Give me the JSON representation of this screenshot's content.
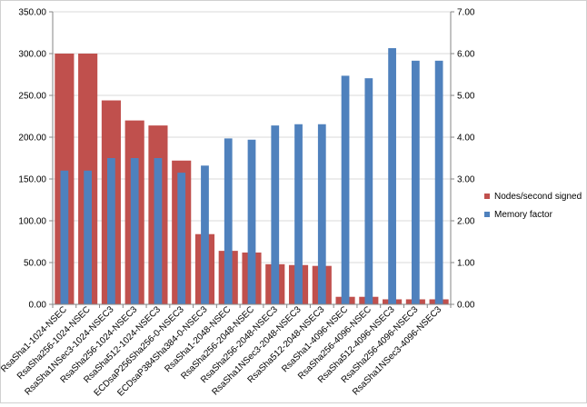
{
  "chart_data": {
    "type": "bar",
    "categories": [
      "RsaSha1-1024-NSEC",
      "RsaSha256-1024-NSEC",
      "RsaSha1NSec3-1024-NSEC3",
      "RsaSha256-1024-NSEC3",
      "RsaSha512-1024-NSEC3",
      "ECDsaP256Sha256-0-NSEC3",
      "ECDsaP384Sha384-0-NSEC3",
      "RsaSha1-2048-NSEC",
      "RsaSha256-2048-NSEC",
      "RsaSha256-2048-NSEC3",
      "RsaSha1NSec3-2048-NSEC3",
      "RsaSha512-2048-NSEC3",
      "RsaSha1-4096-NSEC",
      "RsaSha256-4096-NSEC",
      "RsaSha512-4096-NSEC3",
      "RsaSha256-4096-NSEC3",
      "RsaSha1NSec3-4096-NSEC3"
    ],
    "series": [
      {
        "name": "Nodes/second signed",
        "axis": "left",
        "color": "#c0504d",
        "values": [
          300,
          300,
          244,
          220,
          214,
          172,
          84,
          64,
          62,
          48,
          47,
          46,
          9,
          9,
          6,
          6,
          6
        ]
      },
      {
        "name": "Memory factor",
        "axis": "right",
        "color": "#4f81bd",
        "values": [
          3.2,
          3.2,
          3.5,
          3.5,
          3.5,
          3.15,
          3.32,
          3.97,
          3.94,
          4.28,
          4.31,
          4.31,
          5.47,
          5.41,
          6.13,
          5.83,
          5.83
        ]
      }
    ],
    "y_left": {
      "ylim": [
        0,
        350
      ],
      "ticks": [
        "0.00",
        "50.00",
        "100.00",
        "150.00",
        "200.00",
        "250.00",
        "300.00",
        "350.00"
      ]
    },
    "y_right": {
      "ylim": [
        0,
        7
      ],
      "ticks": [
        "0.00",
        "1.00",
        "2.00",
        "3.00",
        "4.00",
        "5.00",
        "6.00",
        "7.00"
      ]
    },
    "title": "",
    "xlabel": "",
    "ylabel": "",
    "grid": true,
    "legend_position": "right"
  }
}
